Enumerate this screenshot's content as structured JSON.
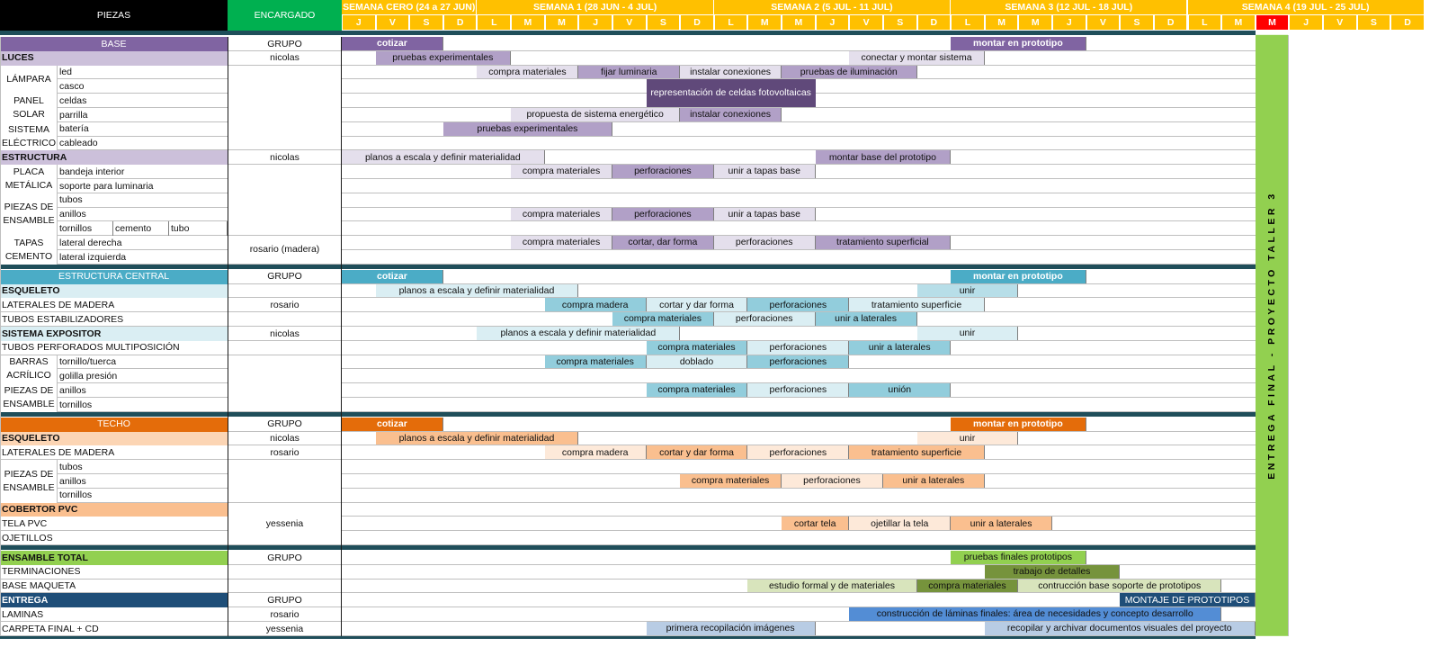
{
  "header": {
    "piezas": "PIEZAS",
    "encargado": "ENCARGADO",
    "weeks": [
      {
        "label": "SEMANA CERO (24 a 27 JUN)",
        "start": 0,
        "span": 4
      },
      {
        "label": "SEMANA 1 (28 JUN - 4 JUL)",
        "start": 4,
        "span": 7
      },
      {
        "label": "SEMANA 2 (5 JUL - 11 JUL)",
        "start": 11,
        "span": 7
      },
      {
        "label": "SEMANA 3 (12 JUL - 18 JUL)",
        "start": 18,
        "span": 7
      },
      {
        "label": "SEMANA 4 (19 JUL - 25 JUL)",
        "start": 25,
        "span": 7
      }
    ],
    "days": [
      "J",
      "V",
      "S",
      "D",
      "L",
      "M",
      "M",
      "J",
      "V",
      "S",
      "D",
      "L",
      "M",
      "M",
      "J",
      "V",
      "S",
      "D",
      "L",
      "M",
      "M",
      "J",
      "V",
      "S",
      "D",
      "L",
      "M",
      "M",
      "J",
      "V",
      "S",
      "D"
    ],
    "highlight_day": 27
  },
  "vertical_label": "ENTREGA  FINAL - PROYECTO  TALLER 3",
  "colors": {
    "header_black": "#000000",
    "encargado_green": "#00b050",
    "week_yellow": "#ffc000",
    "highlight_red": "#ff0000",
    "separator": "#1f4e5a",
    "entrega_green": "#92d050",
    "base": [
      "#8064a2",
      "#ccc0da",
      "#e4dfec",
      "#b1a0c7",
      "#60497a"
    ],
    "central": [
      "#4bacc6",
      "#daeef3",
      "#92cddc",
      "#b7dee8"
    ],
    "techo": [
      "#e46c0a",
      "#fcd5b4",
      "#fde9d9",
      "#fabf8f"
    ],
    "total": [
      "#92d050",
      "#d8e4bc",
      "#76933c",
      "#c4d79b",
      "#ebf1de"
    ],
    "entrega": [
      "#1f4e78",
      "#538dd5",
      "#b8cce4"
    ]
  },
  "rows": [
    {
      "cells": [
        {
          "t": "BASE",
          "c": 0,
          "x": 0,
          "w": 253,
          "color": "#8064a2",
          "fg": "#ffffff",
          "align": "ctr"
        },
        {
          "t": "GRUPO",
          "c": 1,
          "x": 253,
          "w": 127,
          "align": "ctr"
        }
      ],
      "bars": [
        {
          "t": "cotizar",
          "s": 0,
          "e": 3,
          "color": "#8064a2",
          "fg": "#ffffff",
          "bold": true
        },
        {
          "t": "montar en prototipo",
          "s": 18,
          "e": 22,
          "color": "#8064a2",
          "fg": "#ffffff",
          "bold": true
        }
      ]
    },
    {
      "cells": [
        {
          "t": "LUCES",
          "x": 0,
          "w": 253,
          "color": "#ccc0da",
          "bold": true
        },
        {
          "t": "nicolas",
          "x": 253,
          "w": 127,
          "align": "ctr"
        }
      ],
      "bars": [
        {
          "t": "pruebas experimentales",
          "s": 1,
          "e": 5,
          "color": "#b1a0c7"
        },
        {
          "t": "conectar y montar sistema",
          "s": 15,
          "e": 19,
          "color": "#e4dfec"
        }
      ]
    },
    {
      "bars": [
        {
          "t": "compra materiales",
          "s": 4,
          "e": 7,
          "color": "#e4dfec"
        },
        {
          "t": "fijar luminaria",
          "s": 7,
          "e": 10,
          "color": "#b1a0c7"
        },
        {
          "t": "instalar conexiones",
          "s": 10,
          "e": 13,
          "color": "#e4dfec"
        },
        {
          "t": "pruebas de iluminación",
          "s": 13,
          "e": 17,
          "color": "#b1a0c7"
        }
      ]
    },
    {
      "bars": []
    },
    {
      "bars": []
    },
    {
      "bars": [
        {
          "t": "propuesta de sistema energético",
          "s": 5,
          "e": 10,
          "color": "#e4dfec"
        },
        {
          "t": "instalar conexiones",
          "s": 10,
          "e": 13,
          "color": "#b1a0c7"
        }
      ]
    },
    {
      "bars": [
        {
          "t": "pruebas experimentales",
          "s": 3,
          "e": 8,
          "color": "#b1a0c7"
        }
      ]
    },
    {
      "bars": []
    },
    {
      "cells": [
        {
          "t": "ESTRUCTURA",
          "x": 0,
          "w": 253,
          "color": "#ccc0da",
          "bold": true
        },
        {
          "t": "nicolas",
          "x": 253,
          "w": 127,
          "align": "ctr"
        }
      ],
      "bars": [
        {
          "t": "planos a escala y definir materialidad",
          "s": 0,
          "e": 6,
          "color": "#e4dfec"
        },
        {
          "t": "montar base del prototipo",
          "s": 14,
          "e": 18,
          "color": "#b1a0c7"
        }
      ]
    },
    {
      "bars": [
        {
          "t": "compra materiales",
          "s": 5,
          "e": 8,
          "color": "#e4dfec"
        },
        {
          "t": "perforaciones",
          "s": 8,
          "e": 11,
          "color": "#b1a0c7"
        },
        {
          "t": "unir a tapas base",
          "s": 11,
          "e": 14,
          "color": "#e4dfec"
        }
      ]
    },
    {
      "bars": []
    },
    {
      "bars": []
    },
    {
      "bars": [
        {
          "t": "compra materiales",
          "s": 5,
          "e": 8,
          "color": "#e4dfec"
        },
        {
          "t": "perforaciones",
          "s": 8,
          "e": 11,
          "color": "#b1a0c7"
        },
        {
          "t": "unir a tapas base",
          "s": 11,
          "e": 14,
          "color": "#e4dfec"
        }
      ]
    },
    {
      "bars": []
    },
    {
      "bars": [
        {
          "t": "compra materiales",
          "s": 5,
          "e": 8,
          "color": "#e4dfec"
        },
        {
          "t": "cortar, dar forma",
          "s": 8,
          "e": 11,
          "color": "#b1a0c7"
        },
        {
          "t": "perforaciones",
          "s": 11,
          "e": 14,
          "color": "#e4dfec"
        },
        {
          "t": "tratamiento superficial",
          "s": 14,
          "e": 18,
          "color": "#b1a0c7"
        }
      ]
    },
    {
      "bars": []
    },
    {
      "sep": true
    },
    {
      "cells": [
        {
          "t": "ESTRUCTURA CENTRAL",
          "x": 0,
          "w": 253,
          "color": "#4bacc6",
          "fg": "#ffffff",
          "align": "ctr"
        },
        {
          "t": "GRUPO",
          "x": 253,
          "w": 127,
          "align": "ctr"
        }
      ],
      "bars": [
        {
          "t": "cotizar",
          "s": 0,
          "e": 3,
          "color": "#4bacc6",
          "fg": "#ffffff",
          "bold": true
        },
        {
          "t": "montar en prototipo",
          "s": 18,
          "e": 22,
          "color": "#4bacc6",
          "fg": "#ffffff",
          "bold": true
        }
      ]
    },
    {
      "cells": [
        {
          "t": "ESQUELETO",
          "x": 0,
          "w": 253,
          "color": "#daeef3",
          "bold": true
        },
        {
          "t": "",
          "x": 253,
          "w": 127
        }
      ],
      "bars": [
        {
          "t": "planos a escala y definir materialidad",
          "s": 1,
          "e": 7,
          "color": "#daeef3"
        },
        {
          "t": "unir",
          "s": 17,
          "e": 20,
          "color": "#b7dee8"
        }
      ]
    },
    {
      "cells": [
        {
          "t": "LATERALES DE MADERA",
          "x": 0,
          "w": 253
        },
        {
          "t": "rosario",
          "x": 253,
          "w": 127,
          "align": "ctr"
        }
      ],
      "bars": [
        {
          "t": "compra madera",
          "s": 6,
          "e": 9,
          "color": "#92cddc"
        },
        {
          "t": "cortar y dar forma",
          "s": 9,
          "e": 12,
          "color": "#daeef3"
        },
        {
          "t": "perforaciones",
          "s": 12,
          "e": 15,
          "color": "#92cddc"
        },
        {
          "t": "tratamiento superficie",
          "s": 15,
          "e": 19,
          "color": "#daeef3"
        }
      ]
    },
    {
      "cells": [
        {
          "t": "TUBOS ESTABILIZADORES",
          "x": 0,
          "w": 253
        },
        {
          "t": "",
          "x": 253,
          "w": 127
        }
      ],
      "bars": [
        {
          "t": "compra materiales",
          "s": 8,
          "e": 11,
          "color": "#92cddc"
        },
        {
          "t": "perforaciones",
          "s": 11,
          "e": 14,
          "color": "#daeef3"
        },
        {
          "t": "unir a laterales",
          "s": 14,
          "e": 17,
          "color": "#92cddc"
        }
      ]
    },
    {
      "cells": [
        {
          "t": "SISTEMA EXPOSITOR",
          "x": 0,
          "w": 253,
          "color": "#daeef3",
          "bold": true
        },
        {
          "t": "nicolas",
          "x": 253,
          "w": 127,
          "align": "ctr"
        }
      ],
      "bars": [
        {
          "t": "planos a escala y definir materialidad",
          "s": 4,
          "e": 10,
          "color": "#daeef3"
        },
        {
          "t": "unir",
          "s": 17,
          "e": 20,
          "color": "#daeef3"
        }
      ]
    },
    {
      "cells": [
        {
          "t": "TUBOS PERFORADOS MULTIPOSICIÓN",
          "x": 0,
          "w": 253
        },
        {
          "t": "",
          "x": 253,
          "w": 127
        }
      ],
      "bars": [
        {
          "t": "compra materiales",
          "s": 9,
          "e": 12,
          "color": "#92cddc"
        },
        {
          "t": "perforaciones",
          "s": 12,
          "e": 15,
          "color": "#daeef3"
        },
        {
          "t": "unir a laterales",
          "s": 15,
          "e": 18,
          "color": "#92cddc"
        }
      ]
    },
    {
      "bars": [
        {
          "t": "compra materiales",
          "s": 6,
          "e": 9,
          "color": "#92cddc"
        },
        {
          "t": "doblado",
          "s": 9,
          "e": 12,
          "color": "#daeef3"
        },
        {
          "t": "perforaciones",
          "s": 12,
          "e": 15,
          "color": "#92cddc"
        }
      ]
    },
    {
      "bars": []
    },
    {
      "bars": [
        {
          "t": "compra materiales",
          "s": 9,
          "e": 12,
          "color": "#92cddc"
        },
        {
          "t": "perforaciones",
          "s": 12,
          "e": 15,
          "color": "#daeef3"
        },
        {
          "t": "unión",
          "s": 15,
          "e": 18,
          "color": "#92cddc"
        }
      ]
    },
    {
      "bars": []
    },
    {
      "sep": true
    },
    {
      "cells": [
        {
          "t": "TECHO",
          "x": 0,
          "w": 253,
          "color": "#e46c0a",
          "fg": "#ffffff",
          "align": "ctr"
        },
        {
          "t": "GRUPO",
          "x": 253,
          "w": 127,
          "align": "ctr"
        }
      ],
      "bars": [
        {
          "t": "cotizar",
          "s": 0,
          "e": 3,
          "color": "#e46c0a",
          "fg": "#ffffff",
          "bold": true
        },
        {
          "t": "montar en prototipo",
          "s": 18,
          "e": 22,
          "color": "#e46c0a",
          "fg": "#ffffff",
          "bold": true
        }
      ]
    },
    {
      "cells": [
        {
          "t": "ESQUELETO",
          "x": 0,
          "w": 253,
          "color": "#fcd5b4",
          "bold": true
        },
        {
          "t": "nicolas",
          "x": 253,
          "w": 127,
          "align": "ctr"
        }
      ],
      "bars": [
        {
          "t": "planos a escala y definir materialidad",
          "s": 1,
          "e": 7,
          "color": "#fabf8f"
        },
        {
          "t": "unir",
          "s": 17,
          "e": 20,
          "color": "#fde9d9"
        }
      ]
    },
    {
      "cells": [
        {
          "t": "LATERALES DE MADERA",
          "x": 0,
          "w": 253
        },
        {
          "t": "rosario",
          "x": 253,
          "w": 127,
          "align": "ctr"
        }
      ],
      "bars": [
        {
          "t": "compra madera",
          "s": 6,
          "e": 9,
          "color": "#fde9d9"
        },
        {
          "t": "cortar y dar forma",
          "s": 9,
          "e": 12,
          "color": "#fabf8f"
        },
        {
          "t": "perforaciones",
          "s": 12,
          "e": 15,
          "color": "#fde9d9"
        },
        {
          "t": "tratamiento superficie",
          "s": 15,
          "e": 19,
          "color": "#fabf8f"
        }
      ]
    },
    {
      "bars": []
    },
    {
      "bars": [
        {
          "t": "compra materiales",
          "s": 10,
          "e": 13,
          "color": "#fabf8f"
        },
        {
          "t": "perforaciones",
          "s": 13,
          "e": 16,
          "color": "#fde9d9"
        },
        {
          "t": "unir a laterales",
          "s": 16,
          "e": 19,
          "color": "#fabf8f"
        }
      ]
    },
    {
      "bars": []
    },
    {
      "cells": [
        {
          "t": "COBERTOR PVC",
          "x": 0,
          "w": 253,
          "color": "#fabf8f",
          "bold": true
        }
      ],
      "bars": []
    },
    {
      "cells": [
        {
          "t": "TELA PVC",
          "x": 0,
          "w": 253
        }
      ],
      "bars": [
        {
          "t": "cortar tela",
          "s": 13,
          "e": 15,
          "color": "#fabf8f"
        },
        {
          "t": "ojetillar la tela",
          "s": 15,
          "e": 18,
          "color": "#fde9d9"
        },
        {
          "t": "unir a laterales",
          "s": 18,
          "e": 21,
          "color": "#fabf8f"
        }
      ]
    },
    {
      "cells": [
        {
          "t": "OJETILLOS",
          "x": 0,
          "w": 253
        }
      ],
      "bars": []
    },
    {
      "sep": true
    },
    {
      "cells": [
        {
          "t": "ENSAMBLE TOTAL",
          "x": 0,
          "w": 253,
          "color": "#92d050",
          "bold": true
        },
        {
          "t": "GRUPO",
          "x": 253,
          "w": 127,
          "align": "ctr"
        }
      ],
      "bars": [
        {
          "t": "pruebas finales prototipos",
          "s": 18,
          "e": 22,
          "color": "#92d050"
        }
      ]
    },
    {
      "cells": [
        {
          "t": "TERMINACIONES",
          "x": 0,
          "w": 253
        },
        {
          "t": "",
          "x": 253,
          "w": 127
        }
      ],
      "bars": [
        {
          "t": "trabajo de detalles",
          "s": 19,
          "e": 23,
          "color": "#76933c"
        }
      ]
    },
    {
      "cells": [
        {
          "t": "BASE MAQUETA",
          "x": 0,
          "w": 253
        },
        {
          "t": "",
          "x": 253,
          "w": 127
        }
      ],
      "bars": [
        {
          "t": "estudio formal y de materiales",
          "s": 12,
          "e": 17,
          "color": "#d8e4bc"
        },
        {
          "t": "compra materiales",
          "s": 17,
          "e": 20,
          "color": "#76933c"
        },
        {
          "t": "contrucción base soporte de prototipos",
          "s": 20,
          "e": 26,
          "color": "#d8e4bc"
        }
      ]
    },
    {
      "cells": [
        {
          "t": "ENTREGA",
          "x": 0,
          "w": 253,
          "color": "#1f4e78",
          "fg": "#ffffff",
          "bold": true
        },
        {
          "t": "GRUPO",
          "x": 253,
          "w": 127,
          "align": "ctr"
        }
      ],
      "bars": [
        {
          "t": "MONTAJE DE PROTOTIPOS",
          "s": 23,
          "e": 27,
          "color": "#1f4e78",
          "fg": "#ffffff"
        }
      ]
    },
    {
      "cells": [
        {
          "t": "LAMINAS",
          "x": 0,
          "w": 253
        },
        {
          "t": "rosario",
          "x": 253,
          "w": 127,
          "align": "ctr"
        }
      ],
      "bars": [
        {
          "t": "construcción de láminas finales: área de necesidades y concepto desarrollo",
          "s": 15,
          "e": 26,
          "color": "#538dd5"
        }
      ]
    },
    {
      "cells": [
        {
          "t": "CARPETA FINAL + CD",
          "x": 0,
          "w": 253
        },
        {
          "t": "yessenia",
          "x": 253,
          "w": 127,
          "align": "ctr"
        }
      ],
      "bars": [
        {
          "t": "primera recopilación imágenes",
          "s": 9,
          "e": 14,
          "color": "#b8cce4"
        },
        {
          "t": "recopilar y archivar documentos visuales del proyecto",
          "s": 19,
          "e": 27,
          "color": "#b8cce4"
        }
      ]
    }
  ],
  "groups": [
    {
      "t": "LÁMPARA",
      "r0": 2,
      "r1": 3,
      "items": [
        "led",
        "casco"
      ]
    },
    {
      "t": "PANEL SOLAR",
      "r0": 4,
      "r1": 5,
      "items": [
        "celdas",
        "parrilla"
      ]
    },
    {
      "t": "SISTEMA ELÉCTRICO",
      "r0": 6,
      "r1": 7,
      "items": [
        "batería",
        "cableado"
      ]
    },
    {
      "t": "PLACA METÁLICA",
      "r0": 9,
      "r1": 10,
      "items": [
        "bandeja interior",
        "soporte para luminaria"
      ]
    },
    {
      "t": "PIEZAS DE ENSAMBLE",
      "r0": 11,
      "r1": 13,
      "items": [
        "tubos",
        "anillos"
      ],
      "sub": [
        "tornillos",
        "cemento",
        "tubo"
      ]
    },
    {
      "t": "TAPAS CEMENTO",
      "r0": 14,
      "r1": 15,
      "items": [
        "lateral derecha",
        "lateral izquierda"
      ]
    },
    {
      "t": "BARRAS ACRÍLICO",
      "r0": 23,
      "r1": 24,
      "items": [
        "tornillo/tuerca",
        "golilla presión"
      ]
    },
    {
      "t": "PIEZAS DE ENSAMBLE",
      "r0": 25,
      "r1": 26,
      "items": [
        "anillos",
        "tornillos"
      ]
    },
    {
      "t": "PIEZAS DE ENSAMBLE",
      "r0": 31,
      "r1": 33,
      "items": [
        "tubos",
        "anillos",
        "tornillos"
      ]
    }
  ],
  "merged_encargado": [
    {
      "t": "",
      "r0": 2,
      "r1": 7
    },
    {
      "t": "",
      "r0": 9,
      "r1": 13
    },
    {
      "t": "rosario (madera)",
      "r0": 14,
      "r1": 15
    },
    {
      "t": "",
      "r0": 23,
      "r1": 26
    },
    {
      "t": "",
      "r0": 31,
      "r1": 33
    },
    {
      "t": "yessenia",
      "r0": 34,
      "r1": 36
    }
  ],
  "merged_bars": [
    {
      "t": "representación de celdas fotovoltaicas",
      "r0": 3,
      "r1": 4,
      "s": 9,
      "e": 14,
      "color": "#60497a",
      "fg": "#ffffff"
    }
  ]
}
